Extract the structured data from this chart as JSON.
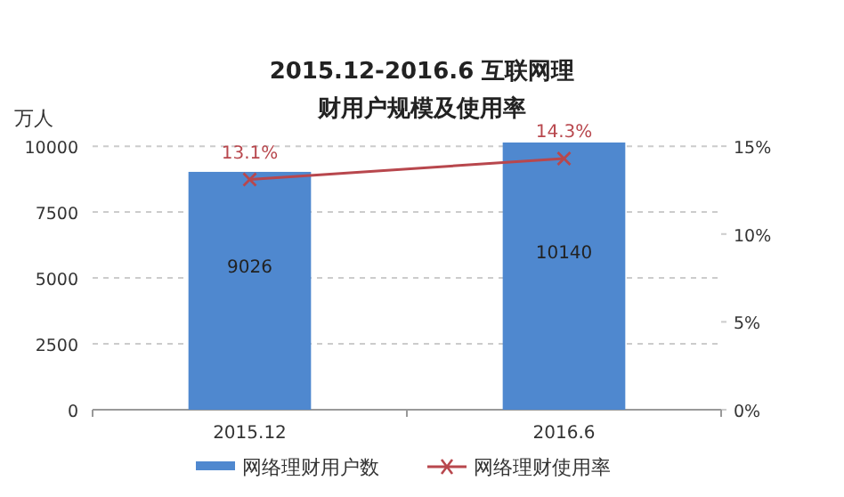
{
  "chart_data": {
    "type": "bar",
    "title": "2015.12-2016.6 互联网理财用户规模及使用率",
    "ylabel": "万人",
    "categories": [
      "2015.12",
      "2016.6"
    ],
    "series": [
      {
        "name": "网络理财用户数",
        "color": "#4f88cf",
        "values": [
          9026,
          10140
        ]
      },
      {
        "name": "网络理财使用率",
        "type": "line",
        "axis": "y2",
        "color": "#b8474d",
        "values": [
          13.1,
          14.3
        ],
        "value_labels": [
          "13.1%",
          "14.3%"
        ]
      }
    ],
    "ylim": [
      0,
      10140
    ],
    "yticks": [
      0,
      2500,
      5000,
      7500,
      10000
    ],
    "y2lim": [
      0,
      15.21
    ],
    "y2ticks": [
      {
        "value": 0,
        "label": "0%"
      },
      {
        "value": 5,
        "label": "5%"
      },
      {
        "value": 10,
        "label": "10%"
      },
      {
        "value": 15,
        "label": "15%"
      }
    ],
    "data_labels": true,
    "grid": "y",
    "legend": "bottom",
    "marker": "cross",
    "line_style": "solid"
  }
}
